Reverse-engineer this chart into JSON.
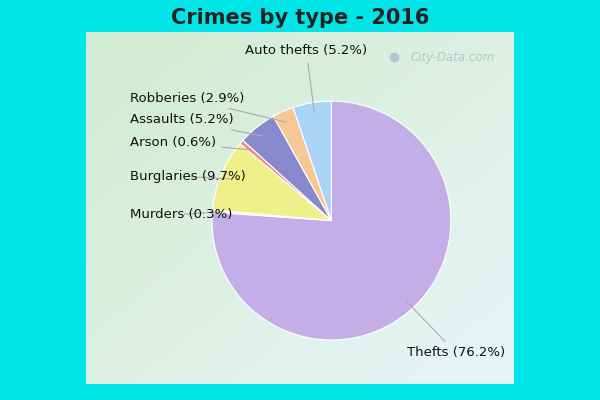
{
  "title": "Crimes by type - 2016",
  "labels": [
    "Thefts",
    "Murders",
    "Burglaries",
    "Arson",
    "Assaults",
    "Robberies",
    "Auto thefts"
  ],
  "values": [
    76.2,
    0.3,
    9.7,
    0.6,
    5.2,
    2.9,
    5.2
  ],
  "colors": [
    "#c4aee8",
    "#d8eac4",
    "#f0f08a",
    "#f08888",
    "#8888cc",
    "#f5c896",
    "#aad4f5"
  ],
  "label_texts": [
    "Thefts (76.2%)",
    "Murders (0.3%)",
    "Burglaries (9.7%)",
    "Arson (0.6%)",
    "Assaults (5.2%)",
    "Robberies (2.9%)",
    "Auto thefts (5.2%)"
  ],
  "outer_border_color": "#00e5e8",
  "inner_bg_top": "#e8f5f8",
  "inner_bg_bottom": "#d0ecd0",
  "title_fontsize": 15,
  "label_fontsize": 9.5,
  "startangle": 90,
  "figsize": [
    6.0,
    4.0
  ],
  "dpi": 100
}
